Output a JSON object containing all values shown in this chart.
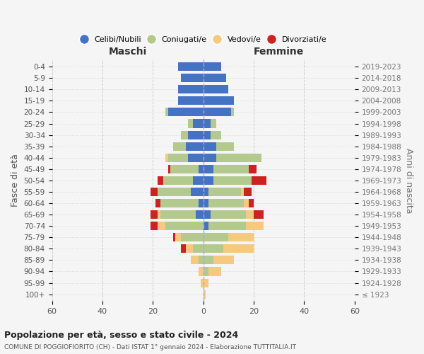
{
  "age_groups": [
    "100+",
    "95-99",
    "90-94",
    "85-89",
    "80-84",
    "75-79",
    "70-74",
    "65-69",
    "60-64",
    "55-59",
    "50-54",
    "45-49",
    "40-44",
    "35-39",
    "30-34",
    "25-29",
    "20-24",
    "15-19",
    "10-14",
    "5-9",
    "0-4"
  ],
  "birth_years": [
    "≤ 1923",
    "1924-1928",
    "1929-1933",
    "1934-1938",
    "1939-1943",
    "1944-1948",
    "1949-1953",
    "1954-1958",
    "1959-1963",
    "1964-1968",
    "1969-1973",
    "1974-1978",
    "1979-1983",
    "1984-1988",
    "1989-1993",
    "1994-1998",
    "1999-2003",
    "2004-2008",
    "2009-2013",
    "2014-2018",
    "2019-2023"
  ],
  "colors": {
    "celibi": "#4472c4",
    "coniugati": "#b3c98d",
    "vedovi": "#f5c97f",
    "divorziati": "#cc2222"
  },
  "males": {
    "celibi": [
      0,
      0,
      0,
      0,
      0,
      0,
      0,
      3,
      2,
      5,
      4,
      2,
      6,
      7,
      6,
      4,
      14,
      10,
      10,
      9,
      10
    ],
    "coniugati": [
      0,
      0,
      0,
      2,
      4,
      9,
      15,
      14,
      15,
      13,
      12,
      11,
      8,
      5,
      3,
      2,
      1,
      0,
      0,
      0,
      0
    ],
    "vedovi": [
      0,
      1,
      2,
      3,
      3,
      2,
      3,
      1,
      0,
      0,
      0,
      0,
      1,
      0,
      0,
      0,
      0,
      0,
      0,
      0,
      0
    ],
    "divorziati": [
      0,
      0,
      0,
      0,
      2,
      1,
      3,
      3,
      2,
      3,
      2,
      1,
      0,
      0,
      0,
      0,
      0,
      0,
      0,
      0,
      0
    ]
  },
  "females": {
    "celibi": [
      0,
      0,
      0,
      0,
      0,
      0,
      2,
      3,
      2,
      2,
      4,
      4,
      5,
      5,
      3,
      3,
      11,
      12,
      10,
      9,
      7
    ],
    "coniugati": [
      0,
      0,
      2,
      4,
      8,
      10,
      15,
      14,
      14,
      13,
      15,
      14,
      18,
      7,
      4,
      2,
      1,
      0,
      0,
      0,
      0
    ],
    "vedovi": [
      1,
      2,
      5,
      8,
      12,
      10,
      7,
      3,
      2,
      1,
      0,
      0,
      0,
      0,
      0,
      0,
      0,
      0,
      0,
      0,
      0
    ],
    "divorziati": [
      0,
      0,
      0,
      0,
      0,
      0,
      0,
      4,
      2,
      3,
      6,
      3,
      0,
      0,
      0,
      0,
      0,
      0,
      0,
      0,
      0
    ]
  },
  "xlim": 60,
  "title_main": "Popolazione per età, sesso e stato civile - 2024",
  "title_sub": "COMUNE DI POGGIOFIORITO (CH) - Dati ISTAT 1° gennaio 2024 - Elaborazione TUTTITALIA.IT",
  "xlabel_left": "Maschi",
  "xlabel_right": "Femmine",
  "ylabel_left": "Fasce di età",
  "ylabel_right": "Anni di nascita",
  "legend_labels": [
    "Celibi/Nubili",
    "Coniugati/e",
    "Vedovi/e",
    "Divorziati/e"
  ],
  "bg_color": "#f5f5f5"
}
